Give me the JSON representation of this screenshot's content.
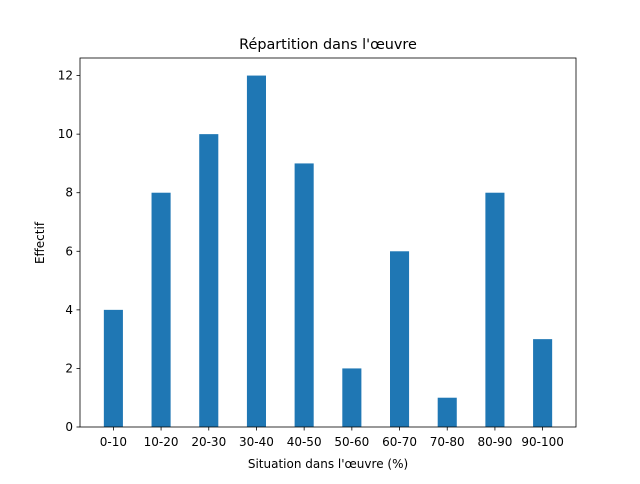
{
  "chart_data": {
    "type": "bar",
    "title": "Répartition dans l'œuvre",
    "xlabel": "Situation dans l'œuvre (%)",
    "ylabel": "Effectif",
    "categories": [
      "0-10",
      "10-20",
      "20-30",
      "30-40",
      "40-50",
      "50-60",
      "60-70",
      "70-80",
      "80-90",
      "90-100"
    ],
    "values": [
      4,
      8,
      10,
      12,
      9,
      2,
      6,
      1,
      8,
      3
    ],
    "ylim": [
      0,
      12.6
    ],
    "yticks": [
      0,
      2,
      4,
      6,
      8,
      10,
      12
    ],
    "grid": false,
    "bar_color": "#1f77b4"
  }
}
